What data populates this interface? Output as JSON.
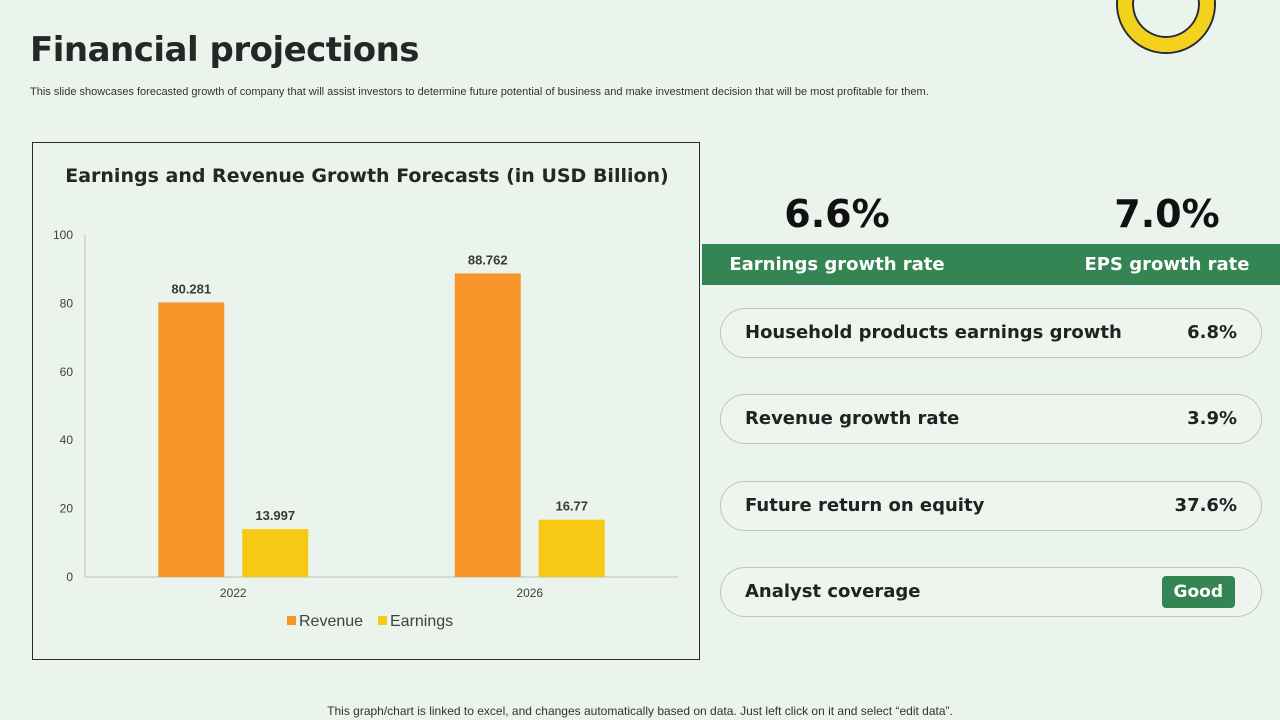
{
  "page": {
    "title": "Financial projections",
    "subtitle": "This slide showcases forecasted growth of company that will assist investors to determine future potential of business and make investment decision that will be most profitable for them.",
    "footnote": "This graph/chart is linked to excel, and changes automatically based on data. Just left click on it and select “edit data”."
  },
  "chart_data": {
    "type": "bar",
    "title": "Earnings and Revenue Growth Forecasts (in USD Billion)",
    "categories": [
      "2022",
      "2026"
    ],
    "series": [
      {
        "name": "Revenue",
        "values": [
          80.281,
          88.762
        ],
        "color": "#F7962A"
      },
      {
        "name": "Earnings",
        "values": [
          13.997,
          16.77
        ],
        "color": "#F8C914"
      }
    ],
    "data_labels": [
      [
        "80.281",
        "88.762"
      ],
      [
        "13.997",
        "16.77"
      ]
    ],
    "ylim": [
      0,
      100
    ],
    "yticks": [
      0,
      20,
      40,
      60,
      80,
      100
    ],
    "xlabel": "",
    "ylabel": "",
    "grid": false,
    "legend_position": "bottom"
  },
  "stats": {
    "earnings_growth": {
      "value": "6.6%",
      "label": "Earnings growth rate"
    },
    "eps_growth": {
      "value": "7.0%",
      "label": "EPS growth rate"
    }
  },
  "metrics": [
    {
      "label": "Household products earnings growth",
      "value": "6.8%"
    },
    {
      "label": "Revenue growth rate",
      "value": "3.9%"
    },
    {
      "label": "Future return on equity",
      "value": "37.6%"
    },
    {
      "label": "Analyst coverage",
      "value": "Good"
    }
  ],
  "colors": {
    "background": "#EAF3EC",
    "accent_green": "#348553",
    "revenue": "#F7962A",
    "earnings": "#F8C914",
    "ring": "#F2D21C"
  }
}
